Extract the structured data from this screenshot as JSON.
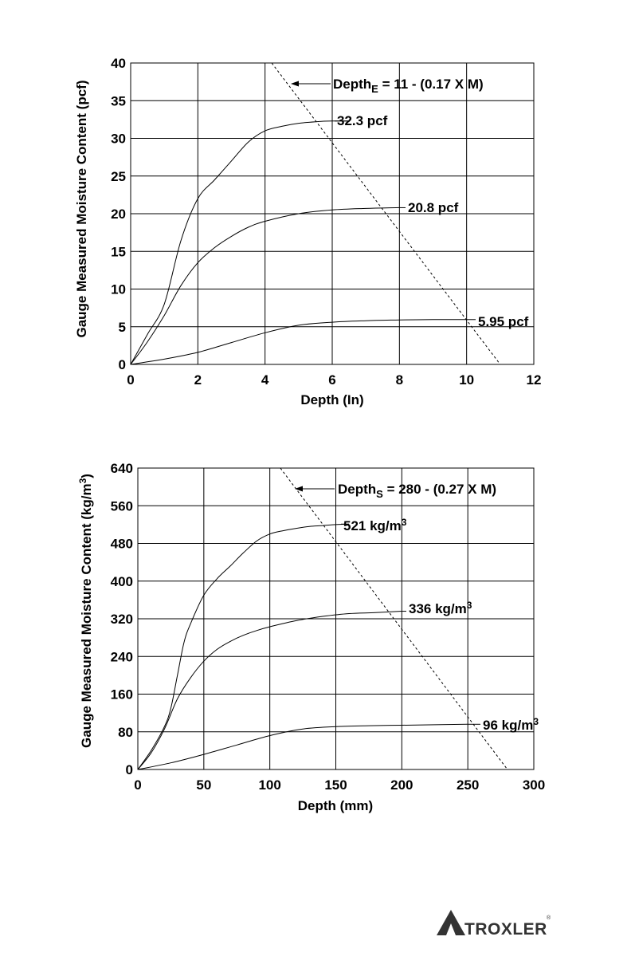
{
  "chart_data": [
    {
      "type": "line",
      "xlabel": "Depth (In)",
      "ylabel": "Gauge Measured Moisture Content (pcf)",
      "xlim": [
        0,
        12
      ],
      "ylim": [
        0,
        40
      ],
      "xticks": [
        "0",
        "2",
        "4",
        "6",
        "8",
        "10",
        "12"
      ],
      "yticks": [
        "0",
        "5",
        "10",
        "15",
        "20",
        "25",
        "30",
        "35",
        "40"
      ],
      "grid": true,
      "series": [
        {
          "name": "32.3 pcf",
          "x": [
            0,
            0.5,
            1,
            1.5,
            2,
            2.5,
            3,
            3.5,
            4,
            4.5,
            5,
            5.5,
            6,
            6.5
          ],
          "y": [
            0,
            4,
            8,
            16.5,
            22,
            24.5,
            27,
            29.5,
            31,
            31.6,
            32,
            32.2,
            32.3,
            32.3
          ]
        },
        {
          "name": "20.8 pcf",
          "x": [
            0,
            0.5,
            1,
            1.5,
            2,
            2.5,
            3,
            3.5,
            4,
            5,
            6,
            7,
            8
          ],
          "y": [
            0,
            3,
            6.5,
            10.5,
            13.5,
            15.5,
            17,
            18.2,
            19,
            20,
            20.5,
            20.7,
            20.8
          ]
        },
        {
          "name": "5.95 pcf",
          "x": [
            0,
            1,
            2,
            3,
            4,
            5,
            6,
            7,
            8,
            9,
            10
          ],
          "y": [
            0,
            0.7,
            1.6,
            2.9,
            4.2,
            5.2,
            5.6,
            5.8,
            5.9,
            5.95,
            5.95
          ]
        }
      ],
      "dashed_line": {
        "label": "Depth_E = 11 - (0.17 X M)",
        "x": [
          4.2,
          11
        ],
        "y": [
          40,
          0
        ]
      },
      "annotation": {
        "base": "Depth",
        "subscript": "E",
        "rest": " = 11 - (0.17 X M)"
      }
    },
    {
      "type": "line",
      "xlabel": "Depth (mm)",
      "ylabel_base": "Gauge Measured Moisture Content (kg/m",
      "ylabel_sup": "3",
      "ylabel_end": ")",
      "xlim": [
        0,
        300
      ],
      "ylim": [
        0,
        640
      ],
      "xticks": [
        "0",
        "50",
        "100",
        "150",
        "200",
        "250",
        "300"
      ],
      "yticks": [
        "0",
        "80",
        "160",
        "240",
        "320",
        "400",
        "480",
        "560",
        "640"
      ],
      "grid": true,
      "series": [
        {
          "name": "521 kg/m3",
          "label_base": "521 kg/m",
          "label_sup": "3",
          "x": [
            0,
            10,
            20,
            25,
            30,
            35,
            40,
            50,
            60,
            70,
            80,
            90,
            100,
            110,
            120,
            130,
            140,
            150,
            160
          ],
          "y": [
            0,
            40,
            90,
            130,
            200,
            270,
            310,
            370,
            405,
            432,
            460,
            485,
            500,
            507,
            512,
            516,
            518,
            520,
            521
          ]
        },
        {
          "name": "336 kg/m3",
          "label_base": "336 kg/m",
          "label_sup": "3",
          "x": [
            0,
            10,
            20,
            30,
            40,
            50,
            60,
            70,
            80,
            90,
            100,
            120,
            140,
            160,
            180,
            200
          ],
          "y": [
            0,
            35,
            85,
            150,
            195,
            230,
            255,
            272,
            285,
            295,
            303,
            316,
            325,
            331,
            333,
            336
          ]
        },
        {
          "name": "96 kg/m3",
          "label_base": "96 kg/m",
          "label_sup": "3",
          "x": [
            0,
            25,
            50,
            75,
            100,
            125,
            150,
            175,
            200,
            225,
            250
          ],
          "y": [
            0,
            14,
            32,
            52,
            72,
            86,
            91,
            93,
            94,
            95,
            96
          ]
        }
      ],
      "dashed_line": {
        "label": "Depth_S = 280 - (0.27 X M)",
        "x": [
          108,
          280
        ],
        "y": [
          640,
          0
        ]
      },
      "annotation": {
        "base": "Depth",
        "subscript": "S",
        "rest": " = 280 - (0.27 X M)"
      }
    }
  ],
  "top_labels": [
    "32.3 pcf",
    "20.8 pcf",
    "5.95 pcf"
  ],
  "logo": {
    "text": "TROXLER",
    "mark": "®"
  }
}
